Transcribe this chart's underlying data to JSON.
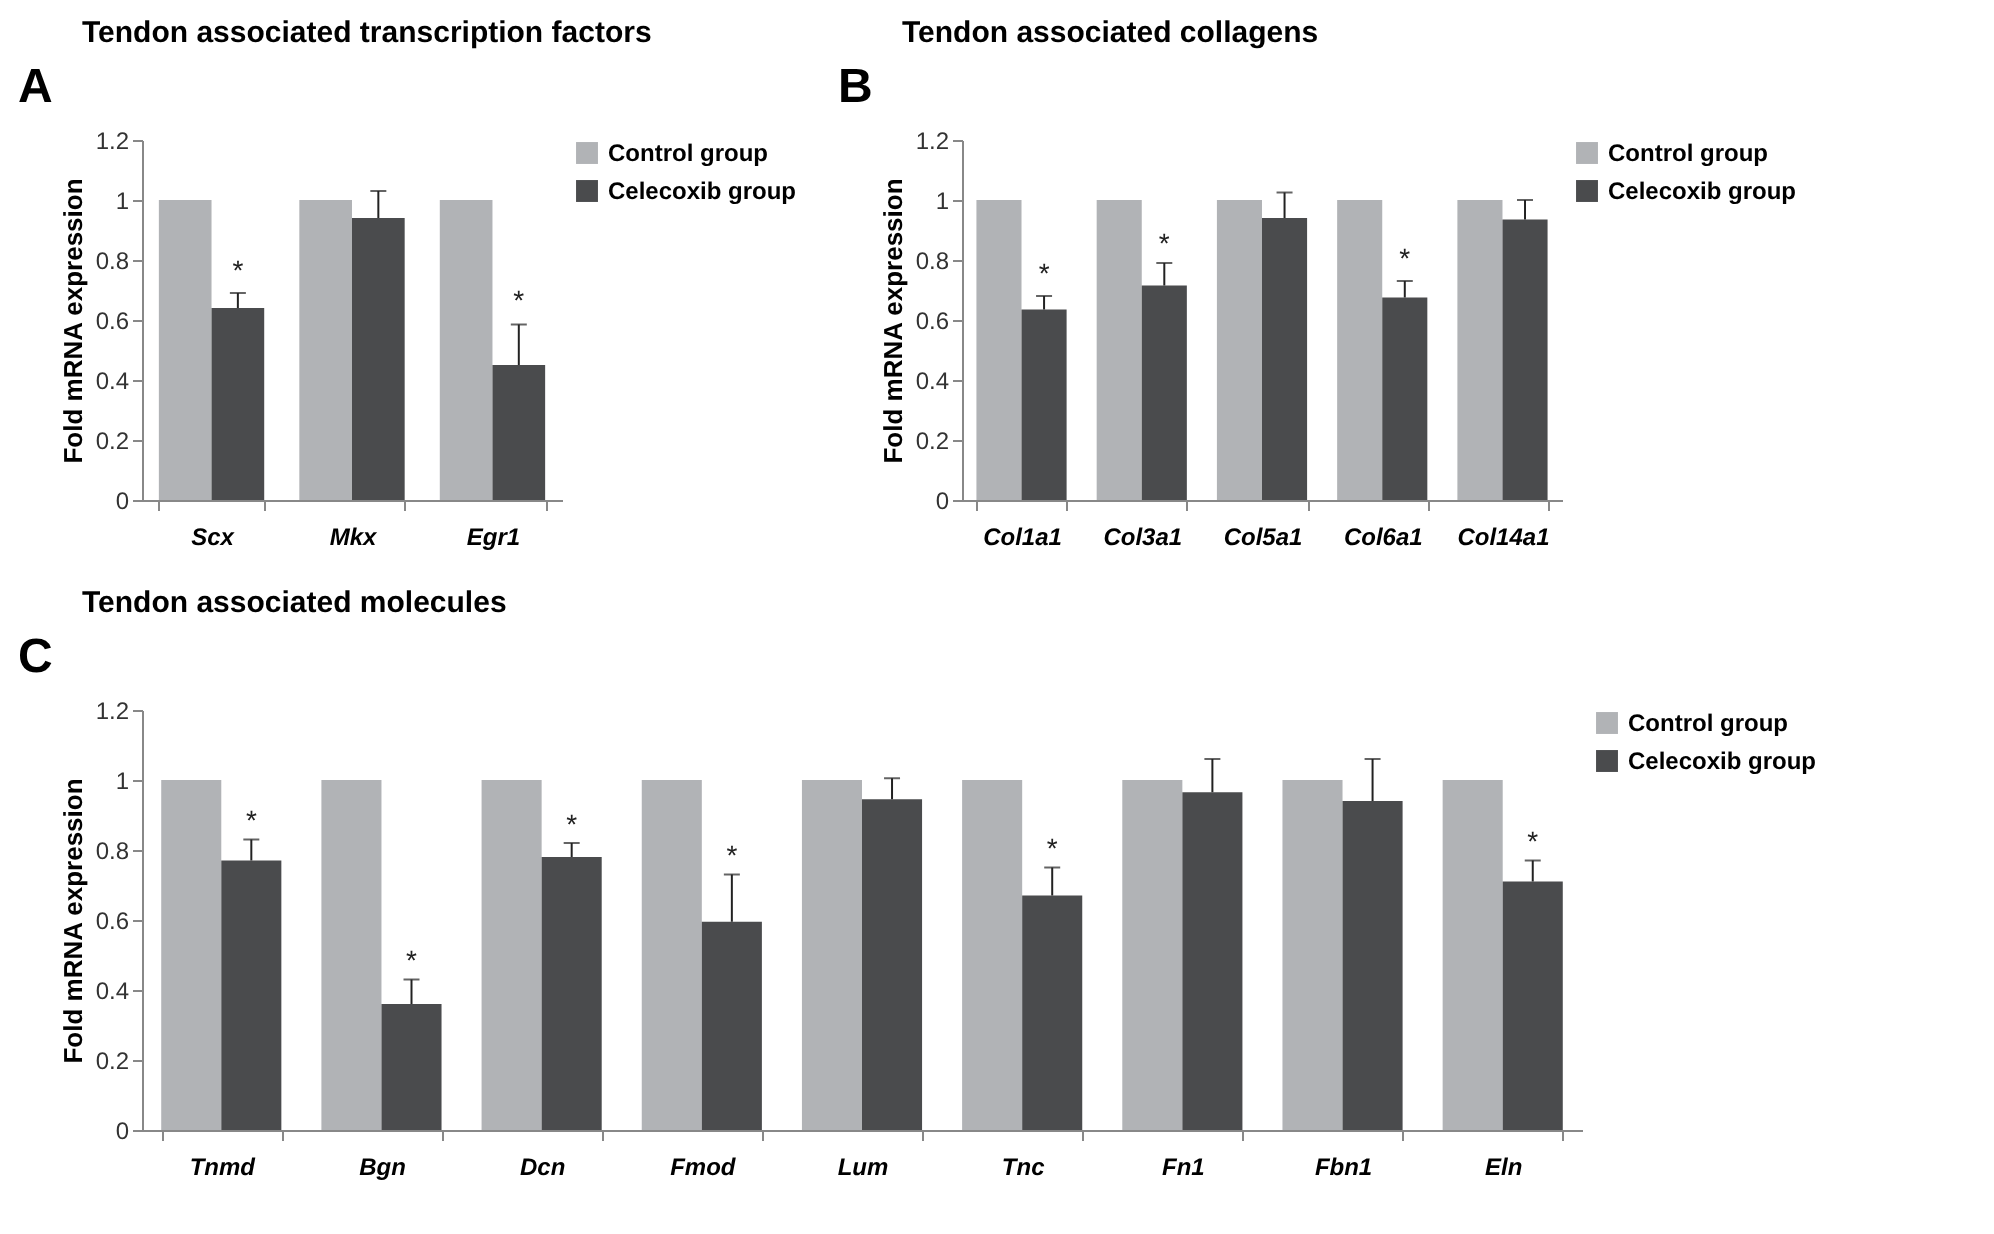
{
  "chart_data": [
    {
      "type": "bar",
      "title": "Tendon associated transcription factors",
      "ylabel": "Fold mRNA expression",
      "categories": [
        "Scx",
        "Mkx",
        "Egr1"
      ],
      "series": [
        {
          "name": "Control group",
          "color": "#b1b3b6",
          "values": [
            1,
            1,
            1
          ]
        },
        {
          "name": "Celecoxib group",
          "color": "#4a4b4d",
          "values": [
            0.64,
            0.94,
            0.45
          ],
          "errors": [
            [
              0.64,
              0.69
            ],
            [
              0.94,
              1.03
            ],
            [
              0.45,
              0.585
            ]
          ]
        }
      ],
      "ylim": [
        0,
        1.2
      ],
      "yticks": [
        0,
        0.2,
        0.4,
        0.6,
        0.8,
        1,
        1.2
      ],
      "grid": false,
      "legend": "right",
      "annotations": [
        "A",
        {
          "text": "*",
          "x": "Scx",
          "y": 0.76
        },
        {
          "text": "*",
          "x": "Egr1",
          "y": 0.66
        }
      ]
    },
    {
      "type": "bar",
      "title": "Tendon associated collagens",
      "ylabel": "Fold mRNA expression",
      "categories": [
        "Col1a1",
        "Col3a1",
        "Col5a1",
        "Col6a1",
        "Col14a1"
      ],
      "series": [
        {
          "name": "Control group",
          "color": "#b1b3b6",
          "values": [
            1,
            1,
            1,
            1,
            1
          ]
        },
        {
          "name": "Celecoxib group",
          "color": "#4a4b4d",
          "values": [
            0.635,
            0.715,
            0.94,
            0.675,
            0.935
          ],
          "errors": [
            [
              0.635,
              0.68
            ],
            [
              0.715,
              0.79
            ],
            [
              0.94,
              1.025
            ],
            [
              0.675,
              0.73
            ],
            [
              0.935,
              1.0
            ]
          ]
        }
      ],
      "ylim": [
        0,
        1.2
      ],
      "yticks": [
        0,
        0.2,
        0.4,
        0.6,
        0.8,
        1,
        1.2
      ],
      "grid": false,
      "legend": "right",
      "annotations": [
        "B",
        {
          "text": "*",
          "x": "Col1a1",
          "y": 0.75
        },
        {
          "text": "*",
          "x": "Col3a1",
          "y": 0.85
        },
        {
          "text": "*",
          "x": "Col6a1",
          "y": 0.8
        }
      ]
    },
    {
      "type": "bar",
      "title": "Tendon associated molecules",
      "ylabel": "Fold mRNA expression",
      "categories": [
        "Tnmd",
        "Bgn",
        "Dcn",
        "Fmod",
        "Lum",
        "Tnc",
        "Fn1",
        "Fbn1",
        "Eln"
      ],
      "series": [
        {
          "name": "Control group",
          "color": "#b1b3b6",
          "values": [
            1,
            1,
            1,
            1,
            1,
            1,
            1,
            1,
            1
          ]
        },
        {
          "name": "Celecoxib group",
          "color": "#4a4b4d",
          "values": [
            0.77,
            0.36,
            0.78,
            0.595,
            0.945,
            0.67,
            0.965,
            0.94,
            0.71
          ],
          "errors": [
            [
              0.77,
              0.83
            ],
            [
              0.36,
              0.43
            ],
            [
              0.78,
              0.82
            ],
            [
              0.595,
              0.73
            ],
            [
              0.945,
              1.005
            ],
            [
              0.67,
              0.75
            ],
            [
              0.965,
              1.06
            ],
            [
              0.94,
              1.06
            ],
            [
              0.71,
              0.77
            ]
          ]
        }
      ],
      "ylim": [
        0,
        1.2
      ],
      "yticks": [
        0,
        0.2,
        0.4,
        0.6,
        0.8,
        1,
        1.2
      ],
      "grid": false,
      "legend": "right",
      "annotations": [
        "C",
        {
          "text": "*",
          "x": "Tnmd",
          "y": 0.88
        },
        {
          "text": "*",
          "x": "Bgn",
          "y": 0.48
        },
        {
          "text": "*",
          "x": "Dcn",
          "y": 0.87
        },
        {
          "text": "*",
          "x": "Fmod",
          "y": 0.78
        },
        {
          "text": "*",
          "x": "Tnc",
          "y": 0.8
        },
        {
          "text": "*",
          "x": "Eln",
          "y": 0.82
        }
      ]
    }
  ]
}
